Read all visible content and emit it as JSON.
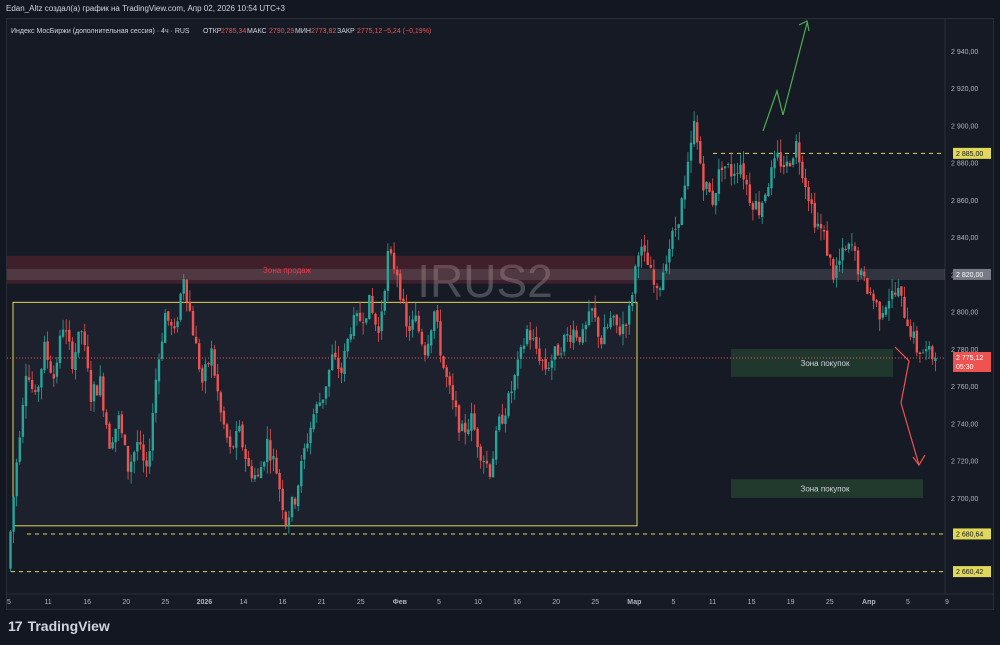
{
  "header": {
    "author_line": "Edan_Altz создал(а) график на TradingView.com, Апр 02, 2026 10:54 UTC+3"
  },
  "legend": {
    "symbol": "Индекс МосБиржи (дополнительная сессия) · 4ч · RUS",
    "open_label": "ОТКР",
    "open_value": "2785,34",
    "high_label": "МАКС",
    "high_value": "2790,29",
    "low_label": "МИН",
    "low_value": "2773,82",
    "close_label": "ЗАКР",
    "close_value": "2775,12",
    "change": "−5,24 (−0,19%)"
  },
  "watermark": "IRUS2",
  "annotations": {
    "sell_zone": "Зона продаж",
    "buy_zone_1": "Зона покупок",
    "buy_zone_2": "Зона покупок"
  },
  "price_tags": {
    "level_2885": "2 885,00",
    "level_2820": "2 820,00",
    "current_price": "2 775,12",
    "countdown": "05:30",
    "level_2680": "2 680,64",
    "level_2660": "2 660,42"
  },
  "brand": {
    "logo_text": "TradingView",
    "logo_mark": "17"
  },
  "colors": {
    "background": "#161a25",
    "up": "#26a69a",
    "down": "#ef5350",
    "sell_zone": "#f23645",
    "buy_zone": "#4caf50",
    "range_box": "#e0d85a"
  },
  "chart_data": {
    "type": "candlestick",
    "interval": "4h",
    "y_axis": {
      "ticks": [
        "2 940,00",
        "2 920,00",
        "2 900,00",
        "2 880,00",
        "2 860,00",
        "2 840,00",
        "2 820,00",
        "2 800,00",
        "2 780,00",
        "2 760,00",
        "2 740,00",
        "2 720,00",
        "2 700,00"
      ],
      "ylim": [
        2650,
        2955
      ]
    },
    "x_axis": {
      "ticks": [
        "5",
        "11",
        "16",
        "20",
        "25",
        "2026",
        "14",
        "16",
        "21",
        "25",
        "Фев",
        "5",
        "10",
        "16",
        "20",
        "25",
        "Мар",
        "5",
        "11",
        "15",
        "19",
        "25",
        "Апр",
        "5",
        "9"
      ]
    },
    "zones": [
      {
        "label": "Зона продаж",
        "from": 2815,
        "to": 2830
      },
      {
        "label": "Зона покупок",
        "from": 2765,
        "to": 2780
      },
      {
        "label": "Зона покупок",
        "from": 2700,
        "to": 2710
      }
    ],
    "levels": [
      2885.0,
      2820.0,
      2680.64,
      2660.42
    ],
    "range_box": {
      "from": 2685,
      "to": 2805
    },
    "last": {
      "open": 2785.34,
      "high": 2790.29,
      "low": 2773.82,
      "close": 2775.12
    },
    "path": [
      [
        0,
        2662
      ],
      [
        3,
        2720
      ],
      [
        6,
        2770
      ],
      [
        9,
        2752
      ],
      [
        12,
        2780
      ],
      [
        15,
        2765
      ],
      [
        18,
        2793
      ],
      [
        21,
        2774
      ],
      [
        24,
        2790
      ],
      [
        27,
        2755
      ],
      [
        30,
        2762
      ],
      [
        33,
        2730
      ],
      [
        36,
        2742
      ],
      [
        39,
        2716
      ],
      [
        42,
        2730
      ],
      [
        45,
        2712
      ],
      [
        48,
        2764
      ],
      [
        51,
        2799
      ],
      [
        54,
        2787
      ],
      [
        57,
        2820
      ],
      [
        60,
        2790
      ],
      [
        63,
        2762
      ],
      [
        66,
        2778
      ],
      [
        69,
        2745
      ],
      [
        72,
        2725
      ],
      [
        75,
        2735
      ],
      [
        78,
        2716
      ],
      [
        81,
        2710
      ],
      [
        84,
        2730
      ],
      [
        87,
        2715
      ],
      [
        90,
        2688
      ],
      [
        93,
        2700
      ],
      [
        96,
        2725
      ],
      [
        99,
        2745
      ],
      [
        102,
        2755
      ],
      [
        105,
        2775
      ],
      [
        108,
        2768
      ],
      [
        111,
        2792
      ],
      [
        114,
        2796
      ],
      [
        117,
        2804
      ],
      [
        120,
        2788
      ],
      [
        123,
        2830
      ],
      [
        126,
        2822
      ],
      [
        129,
        2790
      ],
      [
        132,
        2795
      ],
      [
        135,
        2780
      ],
      [
        138,
        2800
      ],
      [
        141,
        2770
      ],
      [
        144,
        2750
      ],
      [
        147,
        2735
      ],
      [
        150,
        2742
      ],
      [
        153,
        2725
      ],
      [
        156,
        2715
      ],
      [
        159,
        2740
      ],
      [
        162,
        2752
      ],
      [
        165,
        2770
      ],
      [
        168,
        2790
      ],
      [
        171,
        2780
      ],
      [
        174,
        2770
      ],
      [
        177,
        2777
      ],
      [
        180,
        2785
      ],
      [
        183,
        2790
      ],
      [
        186,
        2786
      ],
      [
        189,
        2800
      ],
      [
        192,
        2784
      ],
      [
        195,
        2795
      ],
      [
        198,
        2790
      ],
      [
        201,
        2800
      ],
      [
        204,
        2835
      ],
      [
        207,
        2825
      ],
      [
        210,
        2808
      ],
      [
        213,
        2830
      ],
      [
        216,
        2845
      ],
      [
        219,
        2865
      ],
      [
        222,
        2900
      ],
      [
        225,
        2870
      ],
      [
        228,
        2860
      ],
      [
        231,
        2880
      ],
      [
        234,
        2875
      ],
      [
        237,
        2880
      ],
      [
        240,
        2862
      ],
      [
        243,
        2855
      ],
      [
        246,
        2870
      ],
      [
        249,
        2882
      ],
      [
        252,
        2878
      ],
      [
        255,
        2890
      ],
      [
        258,
        2870
      ],
      [
        261,
        2850
      ],
      [
        264,
        2840
      ],
      [
        267,
        2820
      ],
      [
        270,
        2830
      ],
      [
        273,
        2835
      ],
      [
        276,
        2818
      ],
      [
        279,
        2810
      ],
      [
        282,
        2800
      ],
      [
        285,
        2808
      ],
      [
        288,
        2810
      ],
      [
        291,
        2795
      ],
      [
        294,
        2780
      ],
      [
        297,
        2778
      ],
      [
        300,
        2775
      ]
    ]
  }
}
